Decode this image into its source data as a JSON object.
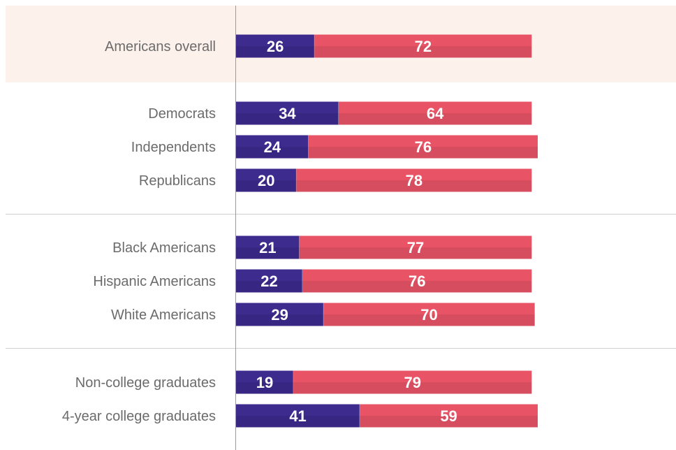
{
  "chart_data": {
    "type": "bar",
    "orientation": "horizontal",
    "stacked": true,
    "categories": [
      "Americans overall",
      "Democrats",
      "Independents",
      "Republicans",
      "Black Americans",
      "Hispanic Americans",
      "White Americans",
      "Non-college graduates",
      "4-year college graduates"
    ],
    "groups": [
      {
        "rows": [
          0
        ],
        "highlight": true
      },
      {
        "rows": [
          1,
          2,
          3
        ],
        "highlight": false
      },
      {
        "rows": [
          4,
          5,
          6
        ],
        "highlight": false
      },
      {
        "rows": [
          7,
          8
        ],
        "highlight": false
      }
    ],
    "series": [
      {
        "values": [
          26,
          34,
          24,
          20,
          21,
          22,
          29,
          19,
          41
        ],
        "color": "#3d2b8e"
      },
      {
        "values": [
          72,
          64,
          76,
          78,
          77,
          76,
          70,
          79,
          59
        ],
        "color": "#e85466"
      }
    ],
    "xlim": [
      0,
      100
    ],
    "grid": false,
    "legend": "none",
    "highlight_color": "#fdf1ec",
    "divider_color": "#cfcfcf",
    "axis_color": "#9a9a9a",
    "label_color": "#6b6b6b"
  }
}
